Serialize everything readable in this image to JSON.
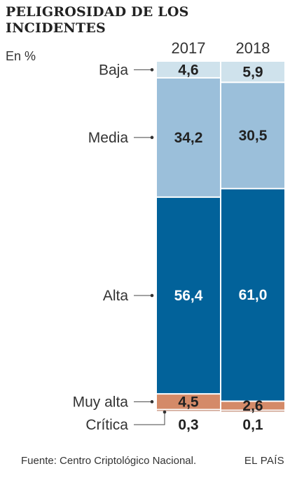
{
  "chart_data": {
    "type": "bar",
    "stacked": true,
    "title": "PELIGROSIDAD DE LOS INCIDENTES",
    "subtitle": "En %",
    "categories": [
      "2017",
      "2018"
    ],
    "series": [
      {
        "name": "Baja",
        "values": [
          4.6,
          5.9
        ],
        "labels": [
          "4,6",
          "5,9"
        ],
        "color": "#cfe2ec"
      },
      {
        "name": "Media",
        "values": [
          34.2,
          30.5
        ],
        "labels": [
          "34,2",
          "30,5"
        ],
        "color": "#9bbfda"
      },
      {
        "name": "Alta",
        "values": [
          56.4,
          61.0
        ],
        "labels": [
          "56,4",
          "61,0"
        ],
        "color": "#02629a"
      },
      {
        "name": "Muy alta",
        "values": [
          4.5,
          2.6
        ],
        "labels": [
          "4,5",
          "2,6"
        ],
        "color": "#d48a68"
      },
      {
        "name": "Crítica",
        "values": [
          0.3,
          0.1
        ],
        "labels": [
          "0,3",
          "0,1"
        ],
        "color": "#a34e2c"
      }
    ],
    "ylim": [
      0,
      100
    ],
    "legend": "left-labels"
  },
  "source": "Fuente: Centro Criptológico Nacional.",
  "brand": "EL PAÍS"
}
